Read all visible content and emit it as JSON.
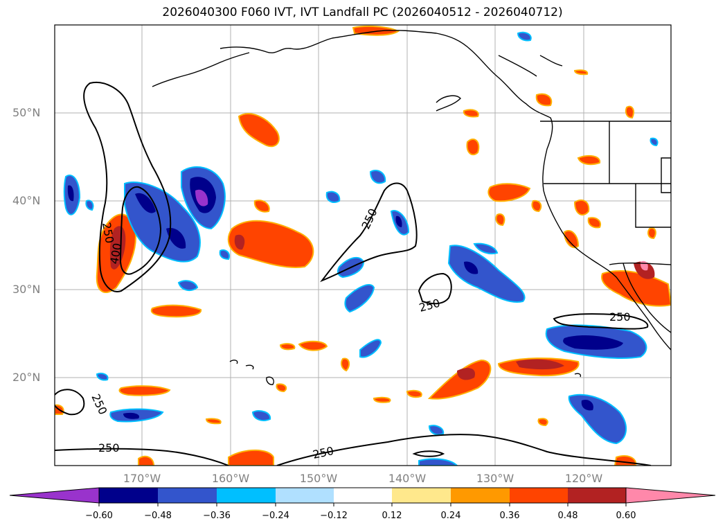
{
  "title": "2026040300 F060 IVT, IVT Landfall PC (2026040512 - 2026040712)",
  "lat_labels": [
    "50°N",
    "40°N",
    "30°N",
    "20°N"
  ],
  "lon_labels": [
    "170°W",
    "160°W",
    "150°W",
    "140°W",
    "130°W",
    "120°W"
  ],
  "contour_labels": [
    "250",
    "400",
    "250",
    "250",
    "250",
    "250",
    "250",
    "250"
  ],
  "colorbar": {
    "ticks": [
      "−0.60",
      "−0.48",
      "−0.36",
      "−0.24",
      "−0.12",
      "0.12",
      "0.24",
      "0.36",
      "0.48",
      "0.60"
    ],
    "colors": [
      "#9933cc",
      "#00008b",
      "#3355cc",
      "#00bfff",
      "#b0e0ff",
      "#ffffff",
      "#ffe88c",
      "#ff9900",
      "#ff4400",
      "#b22222",
      "#ff88aa"
    ]
  }
}
